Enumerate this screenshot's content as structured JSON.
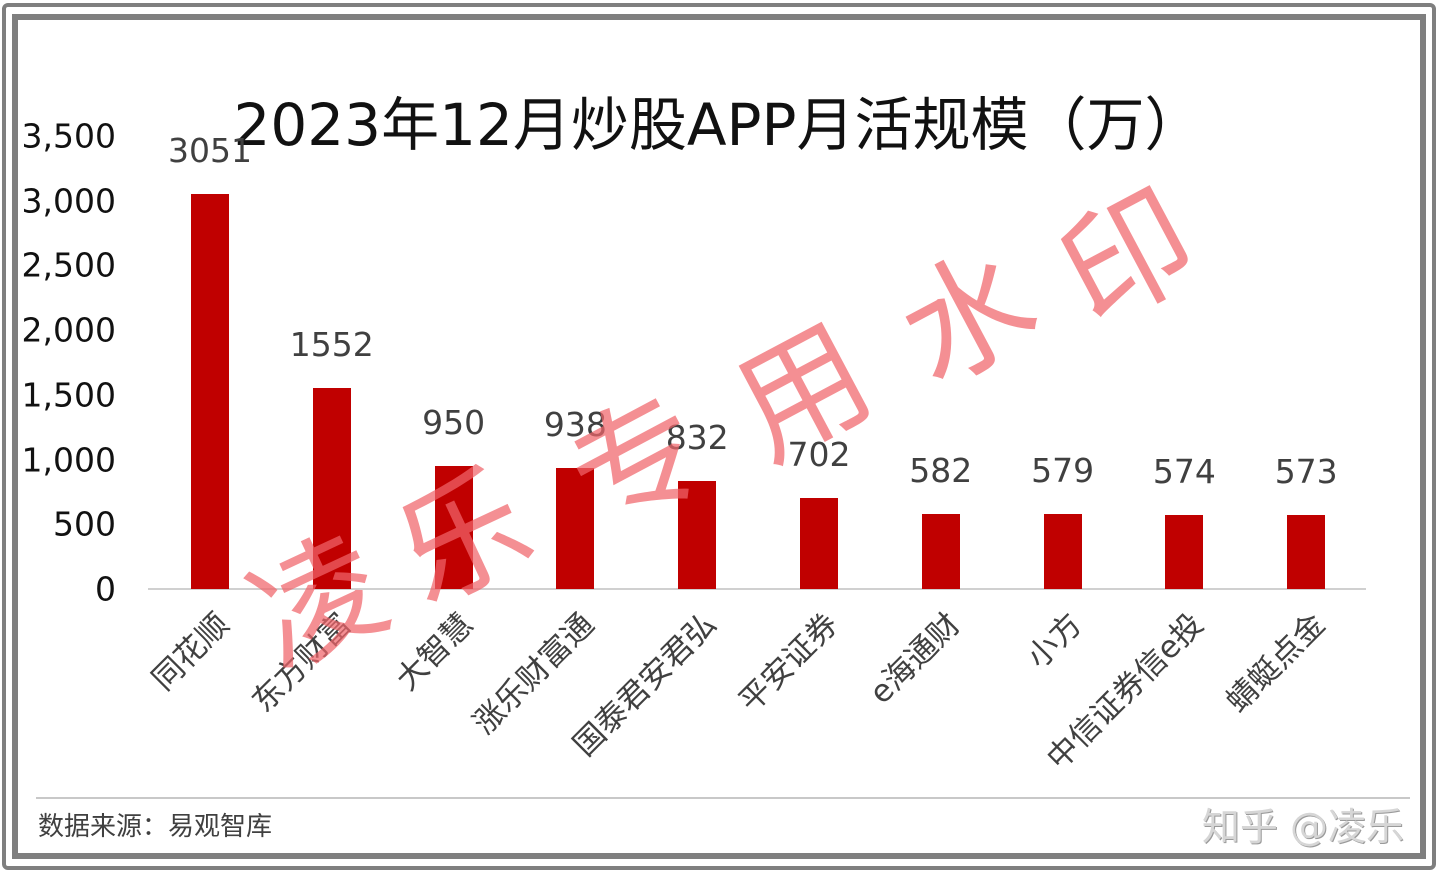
{
  "chart_data": {
    "type": "bar",
    "title": "2023年12月炒股APP月活规模（万）",
    "xlabel": "",
    "ylabel": "",
    "categories": [
      "同花顺",
      "东方财富",
      "大智慧",
      "涨乐财富通",
      "国泰君安君弘",
      "平安证券",
      "e海通财",
      "小方",
      "中信证券信e投",
      "蜻蜓点金"
    ],
    "values": [
      3051,
      1552,
      950,
      938,
      832,
      702,
      582,
      579,
      574,
      573
    ],
    "data_labels": [
      "3051",
      "1552",
      "950",
      "938",
      "832",
      "702",
      "582",
      "579",
      "574",
      "573"
    ],
    "ylim": [
      0,
      3500
    ],
    "yticks": [
      0,
      500,
      1000,
      1500,
      2000,
      2500,
      3000,
      3500
    ],
    "ytick_labels": [
      "0",
      "500",
      "1,000",
      "1,500",
      "2,000",
      "2,500",
      "3,000",
      "3,500"
    ],
    "grid": false,
    "legend": "none",
    "bar_color": "#C00000",
    "x_label_rotation": -45
  },
  "title": "2023年12月炒股APP月活规模（万）",
  "source": "数据来源：易观智库",
  "watermark": {
    "text": "凌乐专用水印",
    "chars": [
      "凌",
      "乐",
      "专",
      "用",
      "水",
      "印"
    ],
    "color": "#F4868A"
  },
  "platform_mark": "知乎 @凌乐",
  "colors": {
    "bar": "#C00000",
    "frame": "#7F7F7F",
    "axis_text": "#111111",
    "label_text": "#404040"
  }
}
